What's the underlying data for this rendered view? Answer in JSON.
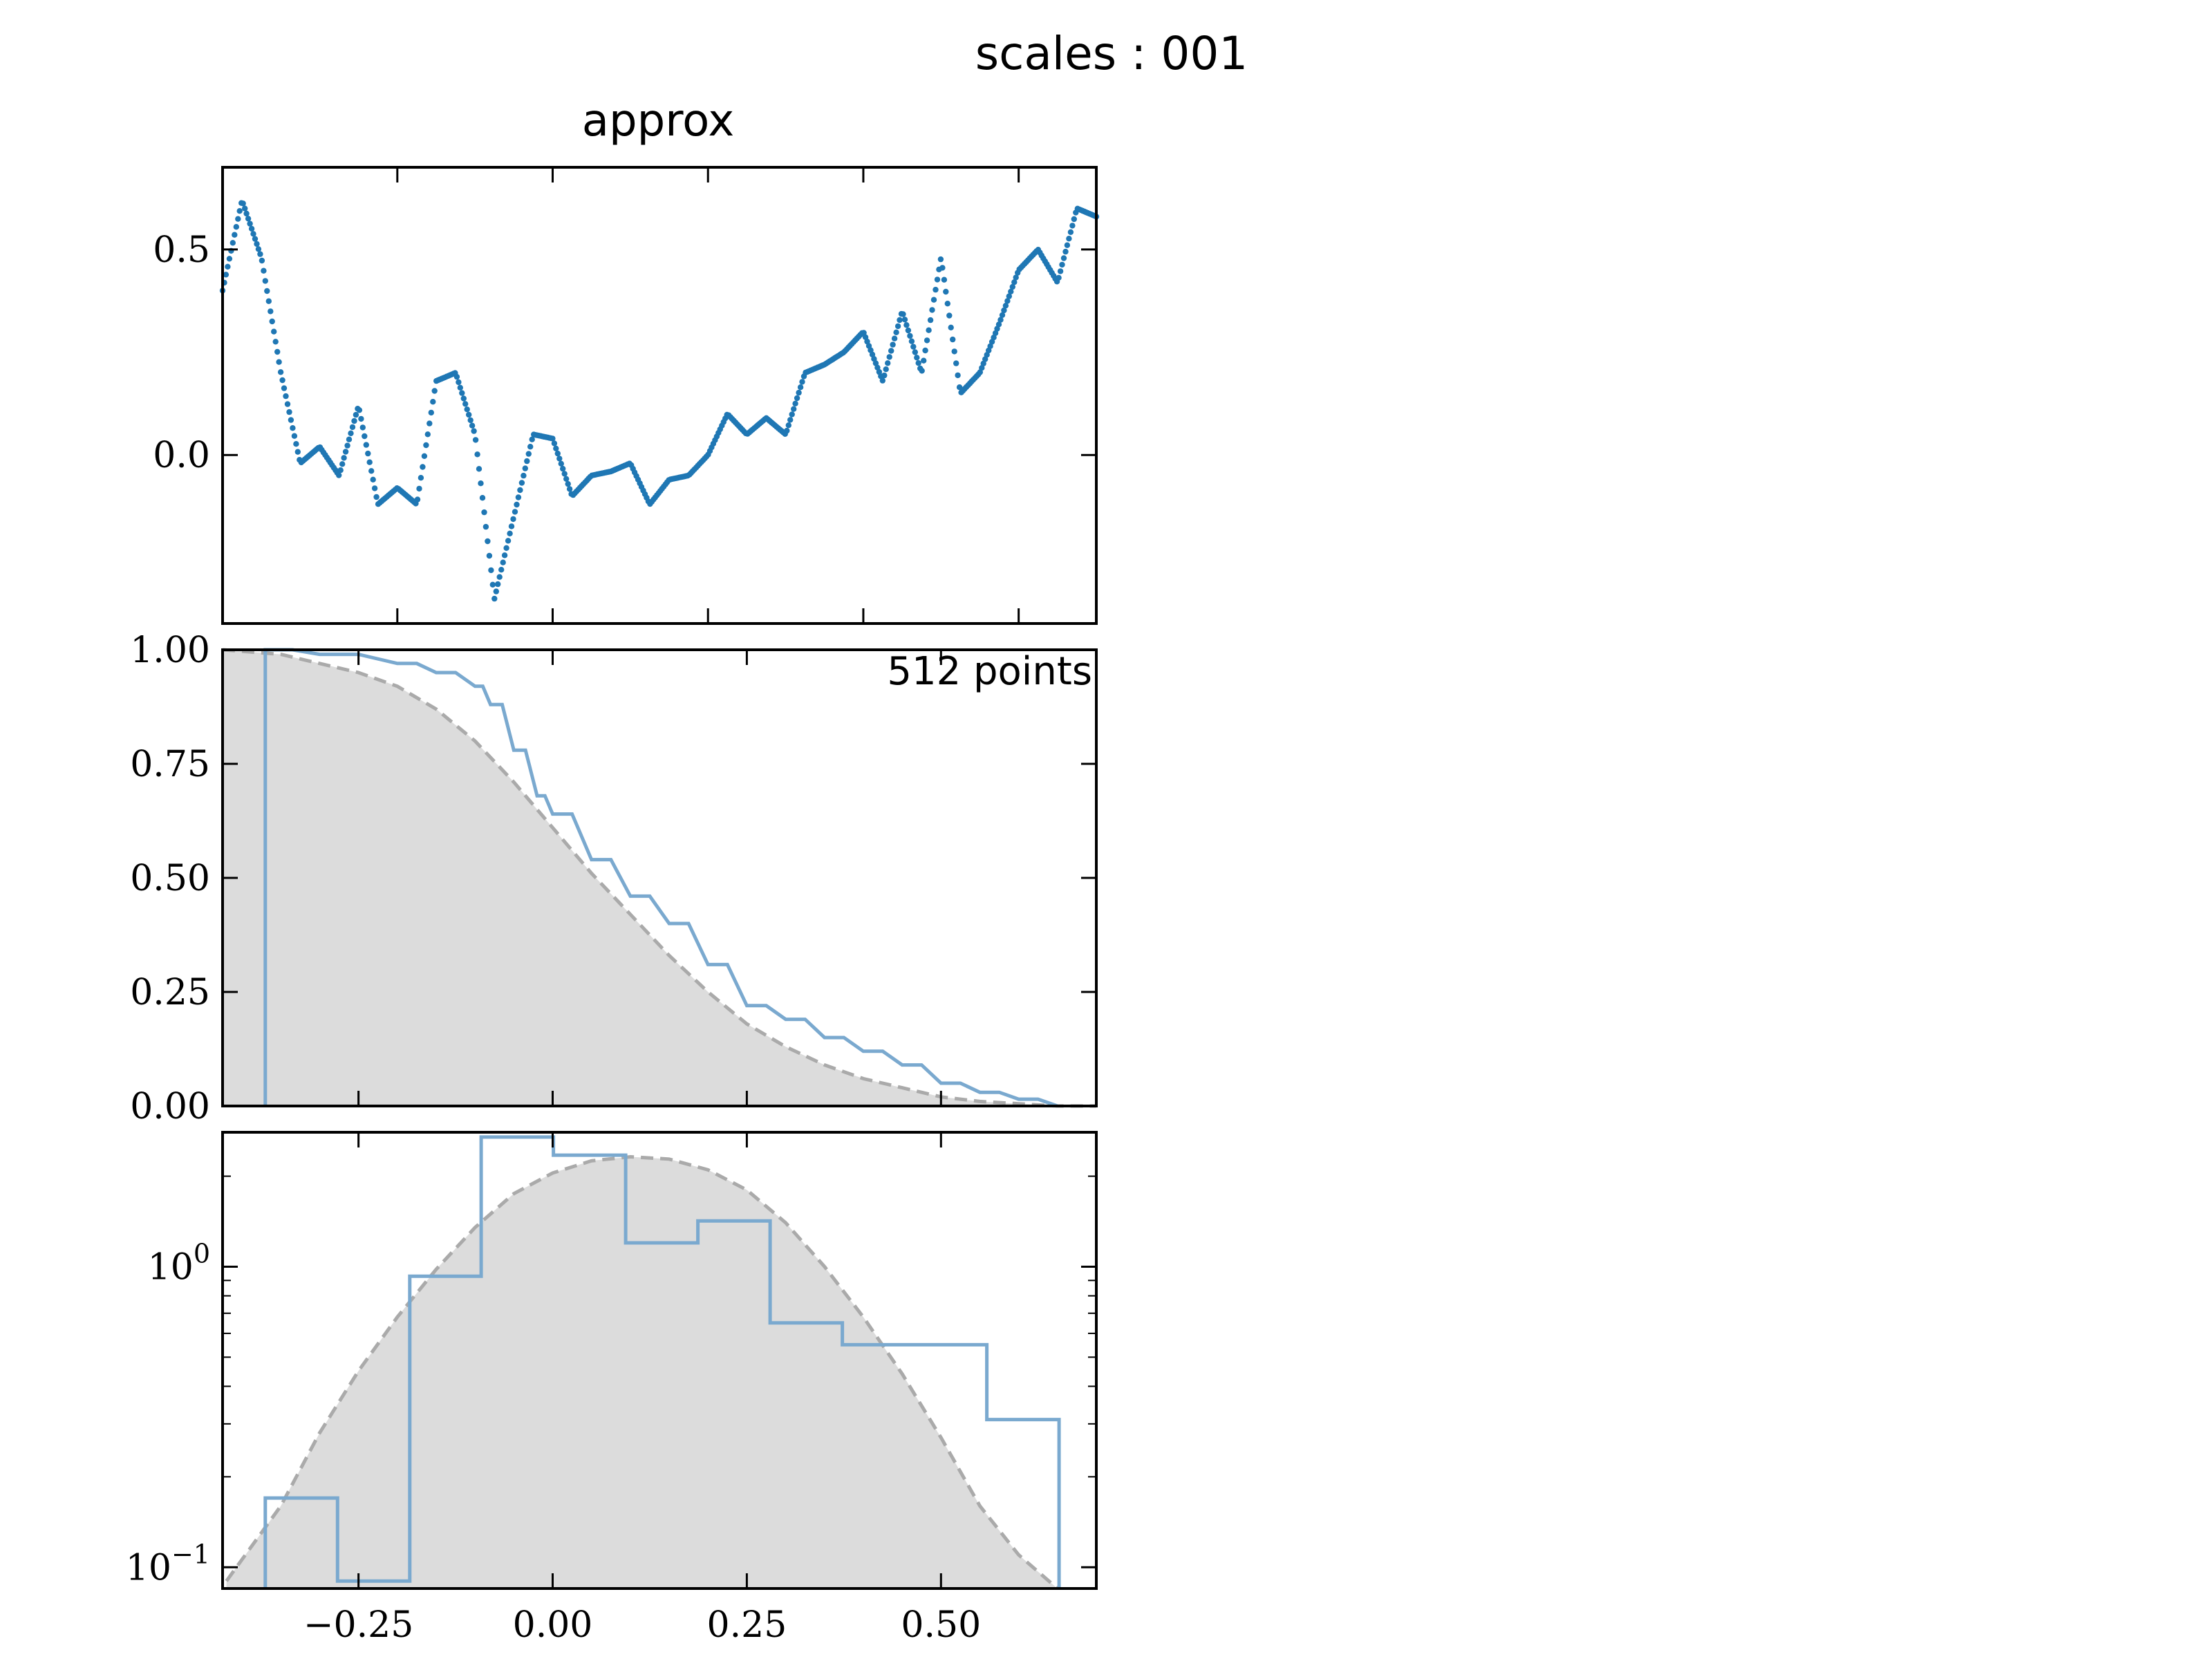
{
  "figure": {
    "suptitle": "scales : 001",
    "subtitle": "approx"
  },
  "chart_data": [
    {
      "type": "scatter",
      "panel": "signal",
      "title": "approx",
      "x_range": [
        -0.425,
        0.7
      ],
      "ylim": [
        -0.41,
        0.7
      ],
      "yticks": [
        0.5,
        0.0
      ],
      "ytick_labels": [
        "0.5",
        "0.0"
      ],
      "xticks": [
        -0.2,
        0.0,
        0.2,
        0.4,
        0.6
      ],
      "n_points": 512,
      "series_color": "#1f77b4",
      "x": [
        -0.425,
        -0.4,
        -0.375,
        -0.35,
        -0.325,
        -0.3,
        -0.275,
        -0.25,
        -0.225,
        -0.2,
        -0.175,
        -0.15,
        -0.125,
        -0.1,
        -0.075,
        -0.05,
        -0.025,
        0.0,
        0.025,
        0.05,
        0.075,
        0.1,
        0.125,
        0.15,
        0.175,
        0.2,
        0.225,
        0.25,
        0.275,
        0.3,
        0.325,
        0.35,
        0.375,
        0.4,
        0.425,
        0.45,
        0.475,
        0.5,
        0.525,
        0.55,
        0.575,
        0.6,
        0.625,
        0.65,
        0.675,
        0.7
      ],
      "y": [
        0.4,
        0.62,
        0.48,
        0.2,
        -0.02,
        0.02,
        -0.05,
        0.12,
        -0.12,
        -0.08,
        -0.12,
        0.18,
        0.2,
        0.05,
        -0.35,
        -0.15,
        0.05,
        0.04,
        -0.1,
        -0.05,
        -0.04,
        -0.02,
        -0.12,
        -0.06,
        -0.05,
        0.0,
        0.1,
        0.05,
        0.09,
        0.05,
        0.2,
        0.22,
        0.25,
        0.3,
        0.18,
        0.35,
        0.2,
        0.48,
        0.15,
        0.2,
        0.32,
        0.45,
        0.5,
        0.42,
        0.6,
        0.58
      ]
    },
    {
      "type": "line",
      "panel": "survival",
      "annotation": "512 points",
      "xlim": [
        -0.425,
        0.7
      ],
      "ylim": [
        0,
        1
      ],
      "yticks": [
        0.0,
        0.25,
        0.5,
        0.75,
        1.0
      ],
      "ytick_labels": [
        "0.00",
        "0.25",
        "0.50",
        "0.75",
        "1.00"
      ],
      "xticks": [
        -0.25,
        0.0,
        0.25,
        0.5
      ],
      "series": [
        {
          "style": "empirical step",
          "color": "#7aa9cf",
          "x": [
            -0.37,
            -0.3,
            -0.2,
            -0.15,
            -0.1,
            -0.08,
            -0.05,
            -0.02,
            0.0,
            0.05,
            0.1,
            0.15,
            0.2,
            0.25,
            0.3,
            0.35,
            0.4,
            0.45,
            0.5,
            0.55,
            0.6,
            0.65
          ],
          "y": [
            1.0,
            0.99,
            0.97,
            0.95,
            0.92,
            0.88,
            0.78,
            0.68,
            0.64,
            0.54,
            0.46,
            0.4,
            0.31,
            0.22,
            0.19,
            0.15,
            0.12,
            0.09,
            0.05,
            0.03,
            0.015,
            0.0
          ]
        },
        {
          "style": "reference dashed with grey fill",
          "color": "#aaaaaa",
          "x": [
            -0.425,
            -0.35,
            -0.3,
            -0.25,
            -0.2,
            -0.15,
            -0.1,
            -0.05,
            0.0,
            0.05,
            0.1,
            0.15,
            0.2,
            0.25,
            0.3,
            0.35,
            0.4,
            0.45,
            0.5,
            0.55,
            0.6,
            0.65,
            0.7
          ],
          "y": [
            1.0,
            0.99,
            0.97,
            0.95,
            0.92,
            0.87,
            0.8,
            0.71,
            0.61,
            0.51,
            0.42,
            0.33,
            0.25,
            0.18,
            0.13,
            0.09,
            0.06,
            0.04,
            0.02,
            0.01,
            0.005,
            0.0,
            0.0
          ]
        }
      ]
    },
    {
      "type": "bar",
      "panel": "histogram",
      "xlim": [
        -0.425,
        0.7
      ],
      "ylim_log": [
        0.085,
        2.8
      ],
      "yscale": "log",
      "xticks": [
        -0.25,
        0.0,
        0.25,
        0.5
      ],
      "xtick_labels": [
        "−0.25",
        "0.00",
        "0.25",
        "0.50"
      ],
      "ytick_labels": [
        {
          "base": "10",
          "exp": "0",
          "value": 1.0
        },
        {
          "base": "10",
          "exp": "−1",
          "value": 0.1
        }
      ],
      "bin_edges": [
        -0.37,
        -0.277,
        -0.184,
        -0.092,
        0.001,
        0.094,
        0.187,
        0.28,
        0.373,
        0.466,
        0.559,
        0.652
      ],
      "values": [
        0.17,
        0.09,
        0.93,
        2.7,
        2.35,
        1.2,
        1.42,
        0.65,
        0.55,
        0.55,
        0.31
      ],
      "series_color": "#7aa9cf",
      "reference_curve": {
        "style": "dashed grey with fill",
        "x": [
          -0.42,
          -0.35,
          -0.3,
          -0.25,
          -0.2,
          -0.15,
          -0.1,
          -0.05,
          0.0,
          0.05,
          0.1,
          0.15,
          0.2,
          0.25,
          0.3,
          0.35,
          0.4,
          0.45,
          0.5,
          0.55,
          0.6,
          0.65
        ],
        "y": [
          0.09,
          0.16,
          0.28,
          0.45,
          0.68,
          0.98,
          1.35,
          1.75,
          2.05,
          2.25,
          2.32,
          2.28,
          2.1,
          1.8,
          1.4,
          1.0,
          0.68,
          0.44,
          0.27,
          0.16,
          0.11,
          0.08
        ]
      }
    }
  ]
}
